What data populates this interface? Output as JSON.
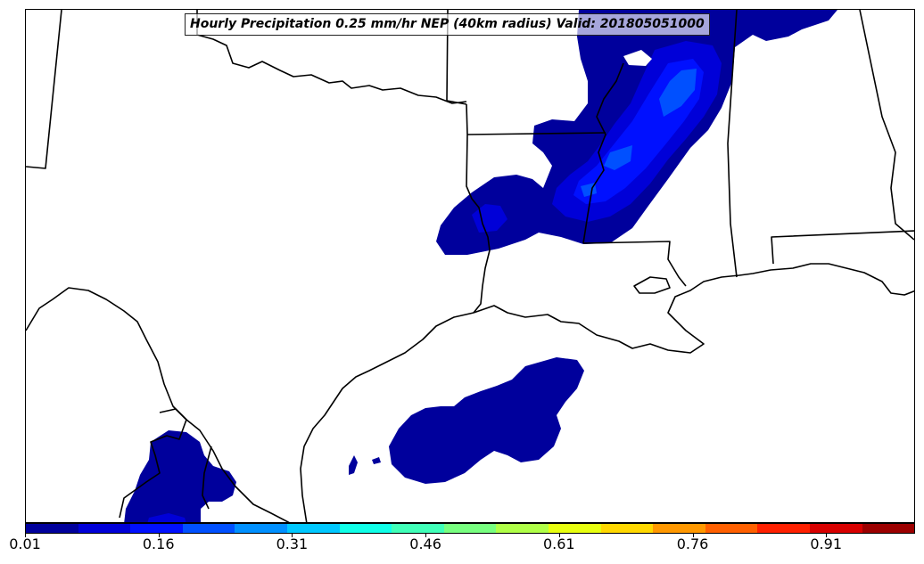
{
  "title": "Hourly Precipitation 0.25 mm/hr NEP (40km radius) Valid: 201805051000",
  "colorbar": {
    "colors": [
      "#00009c",
      "#0000d8",
      "#0010ff",
      "#0050ff",
      "#0090ff",
      "#00c8ff",
      "#10ffe8",
      "#40ffb8",
      "#78ff80",
      "#b0ff48",
      "#e8ff10",
      "#ffd800",
      "#ff9800",
      "#ff6000",
      "#ff2000",
      "#d80000",
      "#9c0000"
    ],
    "tick_labels": [
      "0.01",
      "0.16",
      "0.31",
      "0.46",
      "0.61",
      "0.76",
      "0.91"
    ],
    "tick_values": [
      0.01,
      0.16,
      0.31,
      0.46,
      0.61,
      0.76,
      0.91
    ],
    "range": [
      0.01,
      1.01
    ]
  },
  "map": {
    "region": "south-central United States and Gulf of Mexico",
    "precip_colors": {
      "level_1": "#00009c",
      "level_2": "#0000d8",
      "level_3": "#0010ff",
      "level_4": "#0050ff"
    }
  }
}
